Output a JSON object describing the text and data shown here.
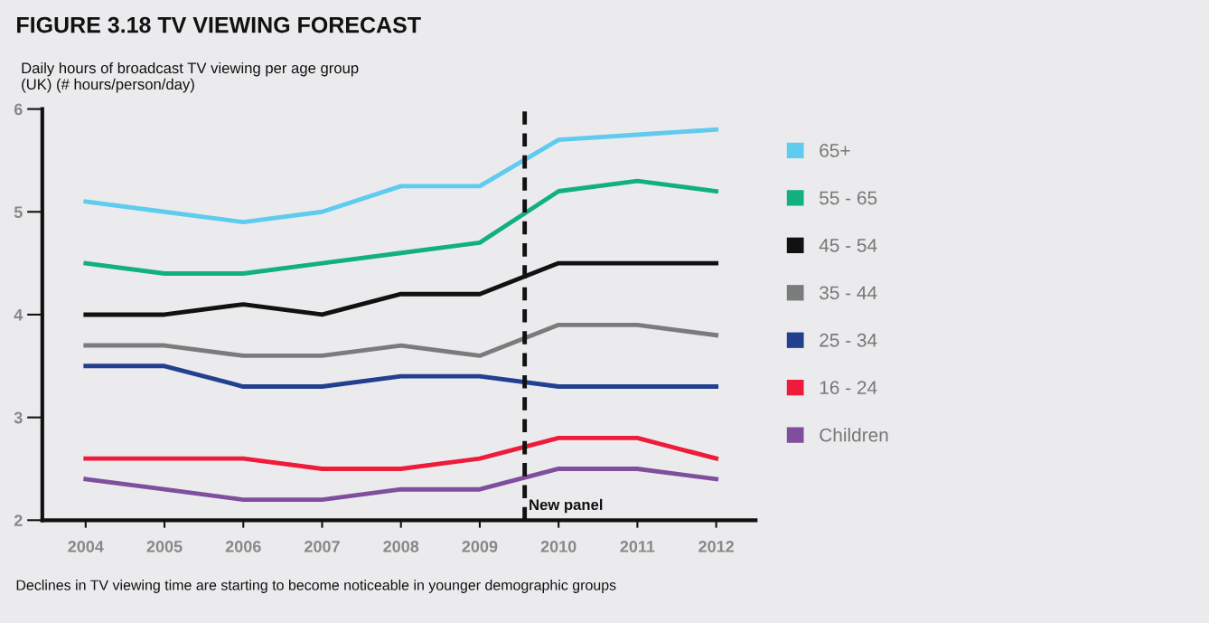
{
  "chart_data": {
    "type": "line",
    "title": "FIGURE 3.18 TV VIEWING FORECAST",
    "ylabel": "Daily hours of broadcast TV viewing per age group\n(UK) (# hours/person/day)",
    "x": [
      2004,
      2005,
      2006,
      2007,
      2008,
      2009,
      2010,
      2011,
      2012
    ],
    "series": [
      {
        "name": "65+",
        "color": "#5fcbef",
        "values": [
          5.1,
          5.0,
          4.9,
          5.0,
          5.25,
          5.25,
          5.7,
          5.75,
          5.8
        ]
      },
      {
        "name": "55 - 65",
        "color": "#12b07f",
        "values": [
          4.5,
          4.4,
          4.4,
          4.5,
          4.6,
          4.7,
          5.2,
          5.3,
          5.2
        ]
      },
      {
        "name": "45 - 54",
        "color": "#111111",
        "values": [
          4.0,
          4.0,
          4.1,
          4.0,
          4.2,
          4.2,
          4.5,
          4.5,
          4.5
        ]
      },
      {
        "name": "35 - 44",
        "color": "#7a7c7c",
        "values": [
          3.7,
          3.7,
          3.6,
          3.6,
          3.7,
          3.6,
          3.9,
          3.9,
          3.8
        ]
      },
      {
        "name": "25 - 34",
        "color": "#233f8f",
        "values": [
          3.5,
          3.5,
          3.3,
          3.3,
          3.4,
          3.4,
          3.3,
          3.3,
          3.3
        ]
      },
      {
        "name": "16 - 24",
        "color": "#ee1c3a",
        "values": [
          2.6,
          2.6,
          2.6,
          2.5,
          2.5,
          2.6,
          2.8,
          2.8,
          2.6
        ]
      },
      {
        "name": "Children",
        "color": "#7f4f9e",
        "values": [
          2.4,
          2.3,
          2.2,
          2.2,
          2.3,
          2.3,
          2.5,
          2.5,
          2.4
        ]
      }
    ],
    "xlim": [
      2003.45,
      2012.5
    ],
    "xticks": [
      2004,
      2005,
      2006,
      2007,
      2008,
      2009,
      2010,
      2011,
      2012
    ],
    "ylim": [
      2,
      6
    ],
    "yticks": [
      2,
      3,
      4,
      5,
      6
    ],
    "ref_lines": [
      {
        "axis": "x",
        "value": 2009.57,
        "label": "New panel",
        "color": "#111111",
        "line_style": "dashed"
      }
    ],
    "annotations": [
      "Declines in TV viewing time are starting to become noticeable in younger demographic groups"
    ],
    "grid": false,
    "legend": "right",
    "marker": "none",
    "line_style": "solid"
  }
}
